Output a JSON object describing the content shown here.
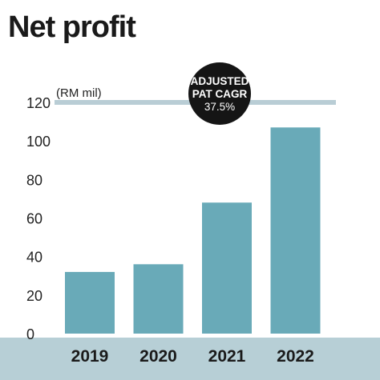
{
  "chart_data": {
    "type": "bar",
    "title": "Net profit",
    "unit_label": "(RM mil)",
    "categories": [
      "2019",
      "2020",
      "2021",
      "2022"
    ],
    "values": [
      32,
      36,
      68,
      107
    ],
    "ylim": [
      0,
      120
    ],
    "yticks": [
      "0",
      "20",
      "40",
      "60",
      "80",
      "100",
      "120"
    ],
    "annotation": {
      "line1": "ADJUSTED",
      "line2": "PAT CAGR",
      "value": "37.5%"
    },
    "colors": {
      "bar": "#69aab8",
      "band": "#b7cfd6",
      "reference_line": "#b9cdd5",
      "badge": "#151515"
    }
  }
}
